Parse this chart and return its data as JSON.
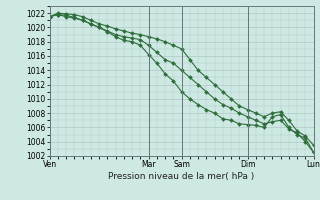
{
  "background_color": "#cee8e4",
  "grid_color": "#b0c8c4",
  "line_color": "#2d6e3a",
  "marker_color": "#2d6e3a",
  "ylim": [
    1002,
    1023
  ],
  "yticks": [
    1002,
    1004,
    1006,
    1008,
    1010,
    1012,
    1014,
    1016,
    1018,
    1020,
    1022
  ],
  "xlabel": "Pression niveau de la mer( hPa )",
  "xlabel_fontsize": 6.5,
  "tick_fontsize": 5.5,
  "day_labels": [
    "Ven",
    "Mar",
    "Sam",
    "Dim",
    "Lun"
  ],
  "day_positions": [
    0,
    12,
    16,
    24,
    32
  ],
  "total_points": 33,
  "series1": [
    1021.5,
    1021.8,
    1021.7,
    1021.4,
    1021.0,
    1020.5,
    1020.0,
    1019.4,
    1018.7,
    1018.2,
    1018.0,
    1017.5,
    1016.2,
    1015.0,
    1013.5,
    1012.5,
    1011.0,
    1010.0,
    1009.2,
    1008.5,
    1008.0,
    1007.2,
    1007.0,
    1006.5,
    1006.4,
    1006.3,
    1006.0,
    1007.5,
    1007.8,
    1006.0,
    1005.0,
    1004.5,
    1002.5
  ],
  "series2": [
    1021.5,
    1022.0,
    1021.9,
    1021.8,
    1021.5,
    1021.0,
    1020.5,
    1020.2,
    1019.8,
    1019.5,
    1019.2,
    1019.0,
    1018.7,
    1018.4,
    1018.0,
    1017.5,
    1017.0,
    1015.5,
    1014.0,
    1013.0,
    1012.0,
    1011.0,
    1010.0,
    1009.0,
    1008.5,
    1008.0,
    1007.5,
    1008.0,
    1008.2,
    1007.0,
    1005.5,
    1004.8,
    1003.5
  ],
  "series3": [
    1021.5,
    1021.8,
    1021.5,
    1021.3,
    1021.0,
    1020.5,
    1020.0,
    1019.5,
    1019.0,
    1018.7,
    1018.5,
    1018.3,
    1017.5,
    1016.5,
    1015.5,
    1015.0,
    1014.0,
    1013.0,
    1012.0,
    1011.0,
    1010.0,
    1009.2,
    1008.7,
    1008.0,
    1007.5,
    1007.0,
    1006.5,
    1006.8,
    1007.0,
    1005.8,
    1005.2,
    1004.0,
    1002.5
  ]
}
